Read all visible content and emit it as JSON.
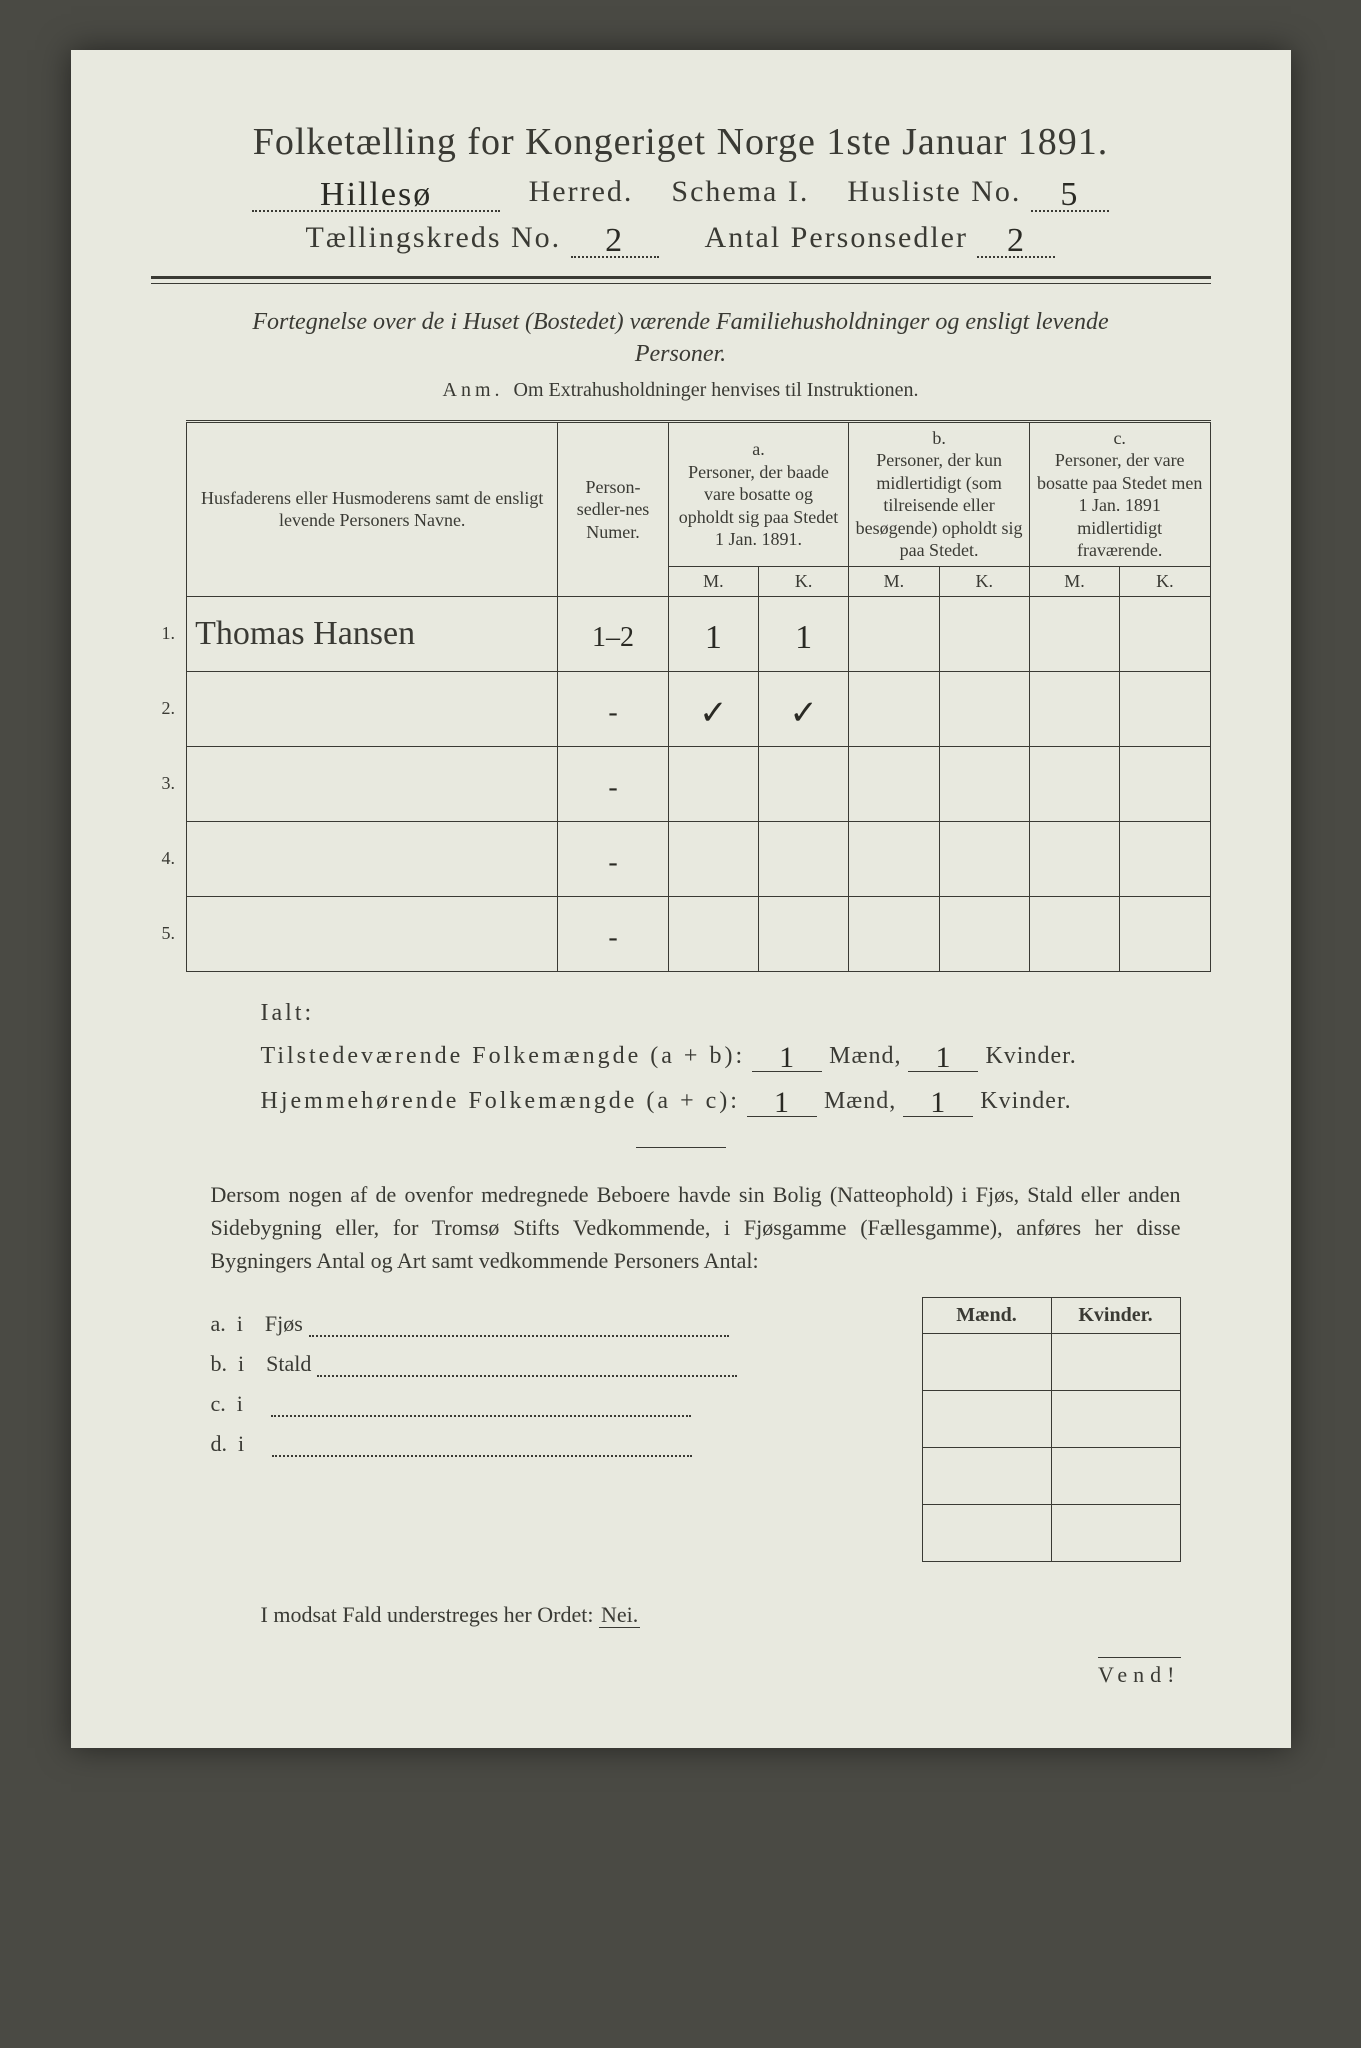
{
  "title": "Folketælling for Kongeriget Norge 1ste Januar 1891.",
  "herred_label_before": "",
  "herred_value": "Hillesø",
  "herred_label": "Herred.",
  "schema_label": "Schema I.",
  "husliste_label": "Husliste No.",
  "husliste_value": "5",
  "kreds_label": "Tællingskreds No.",
  "kreds_value": "2",
  "antal_label": "Antal Personsedler",
  "antal_value": "2",
  "subtitle": "Fortegnelse over de i Huset (Bostedet) værende Familiehusholdninger og ensligt levende Personer.",
  "anm_lead": "Anm.",
  "anm_text": "Om Extrahusholdninger henvises til Instruktionen.",
  "columns": {
    "names": "Husfaderens eller Husmoderens samt de ensligt levende Personers Navne.",
    "num": "Person-sedler-nes Numer.",
    "a_letter": "a.",
    "a": "Personer, der baade vare bosatte og opholdt sig paa Stedet 1 Jan. 1891.",
    "b_letter": "b.",
    "b": "Personer, der kun midlertidigt (som tilreisende eller besøgende) opholdt sig paa Stedet.",
    "c_letter": "c.",
    "c": "Personer, der vare bosatte paa Stedet men 1 Jan. 1891 midlertidigt fraværende.",
    "M": "M.",
    "K": "K."
  },
  "rows": [
    {
      "n": "1.",
      "name": "Thomas Hansen",
      "num": "1–2",
      "aM": "1",
      "aK": "1",
      "bM": "",
      "bK": "",
      "cM": "",
      "cK": ""
    },
    {
      "n": "2.",
      "name": "",
      "num": "-",
      "aM": "✓",
      "aK": "✓",
      "bM": "",
      "bK": "",
      "cM": "",
      "cK": ""
    },
    {
      "n": "3.",
      "name": "",
      "num": "-",
      "aM": "",
      "aK": "",
      "bM": "",
      "bK": "",
      "cM": "",
      "cK": ""
    },
    {
      "n": "4.",
      "name": "",
      "num": "-",
      "aM": "",
      "aK": "",
      "bM": "",
      "bK": "",
      "cM": "",
      "cK": ""
    },
    {
      "n": "5.",
      "name": "",
      "num": "-",
      "aM": "",
      "aK": "",
      "bM": "",
      "bK": "",
      "cM": "",
      "cK": ""
    }
  ],
  "ialt_label": "Ialt:",
  "tilstede_label": "Tilstedeværende Folkemængde (a + b):",
  "hjemme_label": "Hjemmehørende Folkemængde (a + c):",
  "maend_label": "Mænd,",
  "kvinder_label": "Kvinder.",
  "tilstede_m": "1",
  "tilstede_k": "1",
  "hjemme_m": "1",
  "hjemme_k": "1",
  "para": "Dersom nogen af de ovenfor medregnede Beboere havde sin Bolig (Natteophold) i Fjøs, Stald eller anden Sidebygning eller, for Tromsø Stifts Vedkommende, i Fjøsgamme (Fællesgamme), anføres her disse Bygningers Antal og Art samt vedkommende Personers Antal:",
  "sb": {
    "maend": "Mænd.",
    "kvinder": "Kvinder.",
    "rows": [
      {
        "k": "a.",
        "i": "i",
        "label": "Fjøs"
      },
      {
        "k": "b.",
        "i": "i",
        "label": "Stald"
      },
      {
        "k": "c.",
        "i": "i",
        "label": ""
      },
      {
        "k": "d.",
        "i": "i",
        "label": ""
      }
    ]
  },
  "nei_line_pre": "I modsat Fald understreges her Ordet:",
  "nei_word": "Nei.",
  "vend": "Vend!",
  "colors": {
    "paper": "#e8e9df",
    "ink": "#3a3a34",
    "bg": "#4a4a44"
  }
}
